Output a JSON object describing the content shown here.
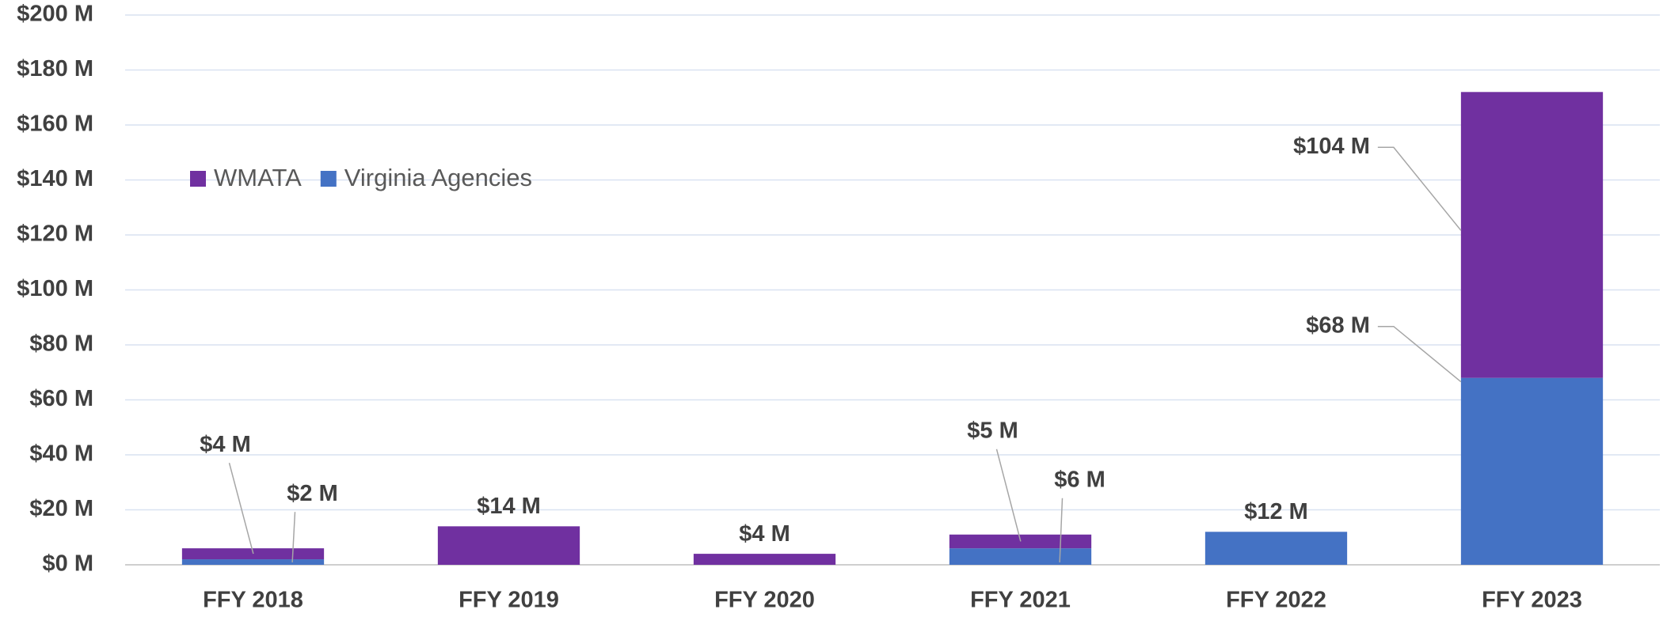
{
  "chart_data": {
    "type": "bar",
    "stacked": true,
    "categories": [
      "FFY 2018",
      "FFY 2019",
      "FFY 2020",
      "FFY 2021",
      "FFY 2022",
      "FFY 2023"
    ],
    "series": [
      {
        "name": "Virginia Agencies",
        "color": "#4472c4",
        "values": [
          2,
          null,
          null,
          6,
          12,
          68
        ],
        "value_labels": [
          "$2 M",
          null,
          null,
          "$6 M",
          "$12 M",
          "$68 M"
        ]
      },
      {
        "name": "WMATA",
        "color": "#7030a0",
        "values": [
          4,
          14,
          4,
          5,
          null,
          104
        ],
        "value_labels": [
          "$4 M",
          "$14 M",
          "$4 M",
          "$5 M",
          null,
          "$104 M"
        ]
      }
    ],
    "ylim": [
      0,
      200
    ],
    "yticks": [
      {
        "value": 0,
        "label": "$0 M"
      },
      {
        "value": 20,
        "label": "$20 M"
      },
      {
        "value": 40,
        "label": "$40 M"
      },
      {
        "value": 60,
        "label": "$60 M"
      },
      {
        "value": 80,
        "label": "$80 M"
      },
      {
        "value": 100,
        "label": "$100 M"
      },
      {
        "value": 120,
        "label": "$120 M"
      },
      {
        "value": 140,
        "label": "$140 M"
      },
      {
        "value": 160,
        "label": "$160 M"
      },
      {
        "value": 180,
        "label": "$180 M"
      },
      {
        "value": 200,
        "label": "$200 M"
      }
    ],
    "grid": true
  }
}
